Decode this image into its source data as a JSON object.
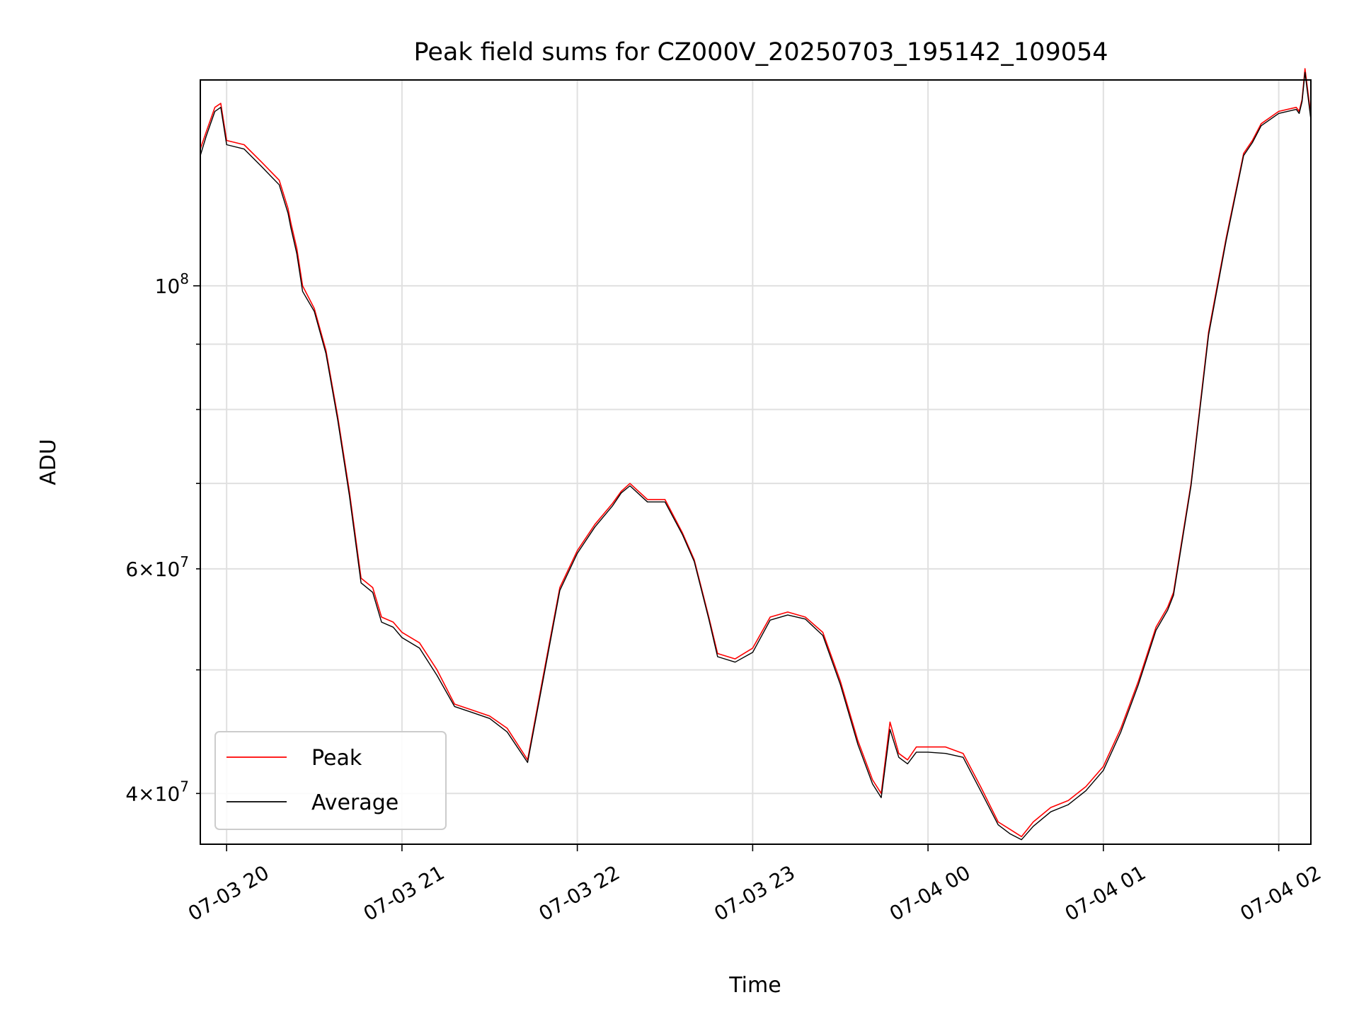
{
  "chart_data": {
    "type": "line",
    "title": "Peak field sums for CZ000V_20250703_195142_109054",
    "xlabel": "Time",
    "ylabel": "ADU",
    "y_scale": "log",
    "ylim": [
      36500000,
      145000000
    ],
    "xlim": [
      "2025-07-03 19:51",
      "2025-07-04 02:11"
    ],
    "grid": true,
    "legend_position": "lower-left",
    "x_ticks": [
      {
        "t": "2025-07-03 20:00",
        "label": "07-03 20"
      },
      {
        "t": "2025-07-03 21:00",
        "label": "07-03 21"
      },
      {
        "t": "2025-07-03 22:00",
        "label": "07-03 22"
      },
      {
        "t": "2025-07-03 23:00",
        "label": "07-03 23"
      },
      {
        "t": "2025-07-04 00:00",
        "label": "07-04 00"
      },
      {
        "t": "2025-07-04 01:00",
        "label": "07-04 01"
      },
      {
        "t": "2025-07-04 02:00",
        "label": "07-04 02"
      }
    ],
    "y_major_ticks": [
      {
        "v": 100000000,
        "label_base": "10",
        "label_exp": "8"
      }
    ],
    "y_minor_ticks": [
      {
        "v": 40000000,
        "label_base": "4×10",
        "label_exp": "7"
      },
      {
        "v": 50000000
      },
      {
        "v": 60000000,
        "label_base": "6×10",
        "label_exp": "7"
      },
      {
        "v": 70000000
      },
      {
        "v": 80000000
      },
      {
        "v": 90000000
      }
    ],
    "series": [
      {
        "name": "Peak",
        "color": "#ff0000",
        "x": [
          "2025-07-03 19:51",
          "2025-07-03 19:53",
          "2025-07-03 19:56",
          "2025-07-03 19:58",
          "2025-07-03 20:00",
          "2025-07-03 20:00",
          "2025-07-03 20:06",
          "2025-07-03 20:12",
          "2025-07-03 20:18",
          "2025-07-03 20:21",
          "2025-07-03 20:22",
          "2025-07-03 20:24",
          "2025-07-03 20:26",
          "2025-07-03 20:30",
          "2025-07-03 20:34",
          "2025-07-03 20:38",
          "2025-07-03 20:42",
          "2025-07-03 20:46",
          "2025-07-03 20:50",
          "2025-07-03 20:53",
          "2025-07-03 20:57",
          "2025-07-03 21:00",
          "2025-07-03 21:06",
          "2025-07-03 21:12",
          "2025-07-03 21:18",
          "2025-07-03 21:24",
          "2025-07-03 21:30",
          "2025-07-03 21:36",
          "2025-07-03 21:43",
          "2025-07-03 21:48",
          "2025-07-03 21:54",
          "2025-07-03 22:00",
          "2025-07-03 22:06",
          "2025-07-03 22:12",
          "2025-07-03 22:15",
          "2025-07-03 22:18",
          "2025-07-03 22:24",
          "2025-07-03 22:30",
          "2025-07-03 22:36",
          "2025-07-03 22:40",
          "2025-07-03 22:45",
          "2025-07-03 22:48",
          "2025-07-03 22:54",
          "2025-07-03 23:00",
          "2025-07-03 23:06",
          "2025-07-03 23:12",
          "2025-07-03 23:18",
          "2025-07-03 23:24",
          "2025-07-03 23:30",
          "2025-07-03 23:36",
          "2025-07-03 23:41",
          "2025-07-03 23:44",
          "2025-07-03 23:47",
          "2025-07-03 23:50",
          "2025-07-03 23:53",
          "2025-07-03 23:56",
          "2025-07-04 00:00",
          "2025-07-04 00:06",
          "2025-07-04 00:12",
          "2025-07-04 00:18",
          "2025-07-04 00:24",
          "2025-07-04 00:28",
          "2025-07-04 00:32",
          "2025-07-04 00:36",
          "2025-07-04 00:42",
          "2025-07-04 00:48",
          "2025-07-04 00:54",
          "2025-07-04 01:00",
          "2025-07-04 01:06",
          "2025-07-04 01:12",
          "2025-07-04 01:18",
          "2025-07-04 01:22",
          "2025-07-04 01:24",
          "2025-07-04 01:30",
          "2025-07-04 01:36",
          "2025-07-04 01:42",
          "2025-07-04 01:48",
          "2025-07-04 01:51",
          "2025-07-04 01:54",
          "2025-07-04 02:00",
          "2025-07-04 02:06",
          "2025-07-04 02:07",
          "2025-07-04 02:08",
          "2025-07-04 02:09",
          "2025-07-04 02:11"
        ],
        "y": [
          128000000,
          132000000,
          138000000,
          139000000,
          130000000,
          130000000,
          129000000,
          125000000,
          121000000,
          115000000,
          112000000,
          107000000,
          100000000,
          96000000,
          89000000,
          79000000,
          69000000,
          59000000,
          58000000,
          55000000,
          54500000,
          53500000,
          52500000,
          50000000,
          47000000,
          46500000,
          46000000,
          45000000,
          42500000,
          49000000,
          58000000,
          62000000,
          65000000,
          67500000,
          69000000,
          70000000,
          68000000,
          68000000,
          64000000,
          61000000,
          55000000,
          51500000,
          51000000,
          52000000,
          55000000,
          55500000,
          55000000,
          53500000,
          49000000,
          44000000,
          41000000,
          40000000,
          45500000,
          43000000,
          42500000,
          43500000,
          43500000,
          43500000,
          43000000,
          40500000,
          38000000,
          37500000,
          37000000,
          38000000,
          39000000,
          39500000,
          40500000,
          42000000,
          45000000,
          49000000,
          54000000,
          56000000,
          57500000,
          70000000,
          92000000,
          109000000,
          127000000,
          130000000,
          134000000,
          137000000,
          138000000,
          137000000,
          140000000,
          148000000,
          136000000
        ]
      },
      {
        "name": "Average",
        "color": "#000000",
        "x": [
          "2025-07-03 19:51",
          "2025-07-03 19:53",
          "2025-07-03 19:56",
          "2025-07-03 19:58",
          "2025-07-03 20:00",
          "2025-07-03 20:00",
          "2025-07-03 20:06",
          "2025-07-03 20:12",
          "2025-07-03 20:18",
          "2025-07-03 20:21",
          "2025-07-03 20:22",
          "2025-07-03 20:24",
          "2025-07-03 20:26",
          "2025-07-03 20:30",
          "2025-07-03 20:34",
          "2025-07-03 20:38",
          "2025-07-03 20:42",
          "2025-07-03 20:46",
          "2025-07-03 20:50",
          "2025-07-03 20:53",
          "2025-07-03 20:57",
          "2025-07-03 21:00",
          "2025-07-03 21:06",
          "2025-07-03 21:12",
          "2025-07-03 21:18",
          "2025-07-03 21:24",
          "2025-07-03 21:30",
          "2025-07-03 21:36",
          "2025-07-03 21:43",
          "2025-07-03 21:48",
          "2025-07-03 21:54",
          "2025-07-03 22:00",
          "2025-07-03 22:06",
          "2025-07-03 22:12",
          "2025-07-03 22:15",
          "2025-07-03 22:18",
          "2025-07-03 22:24",
          "2025-07-03 22:30",
          "2025-07-03 22:36",
          "2025-07-03 22:40",
          "2025-07-03 22:45",
          "2025-07-03 22:48",
          "2025-07-03 22:54",
          "2025-07-03 23:00",
          "2025-07-03 23:06",
          "2025-07-03 23:12",
          "2025-07-03 23:18",
          "2025-07-03 23:24",
          "2025-07-03 23:30",
          "2025-07-03 23:36",
          "2025-07-03 23:41",
          "2025-07-03 23:44",
          "2025-07-03 23:47",
          "2025-07-03 23:50",
          "2025-07-03 23:53",
          "2025-07-03 23:56",
          "2025-07-04 00:00",
          "2025-07-04 00:06",
          "2025-07-04 00:12",
          "2025-07-04 00:18",
          "2025-07-04 00:24",
          "2025-07-04 00:28",
          "2025-07-04 00:32",
          "2025-07-04 00:36",
          "2025-07-04 00:42",
          "2025-07-04 00:48",
          "2025-07-04 00:54",
          "2025-07-04 01:00",
          "2025-07-04 01:06",
          "2025-07-04 01:12",
          "2025-07-04 01:18",
          "2025-07-04 01:22",
          "2025-07-04 01:24",
          "2025-07-04 01:30",
          "2025-07-04 01:36",
          "2025-07-04 01:42",
          "2025-07-04 01:48",
          "2025-07-04 01:51",
          "2025-07-04 01:54",
          "2025-07-04 02:00",
          "2025-07-04 02:06",
          "2025-07-04 02:07",
          "2025-07-04 02:08",
          "2025-07-04 02:09",
          "2025-07-04 02:11"
        ],
        "y": [
          126500000,
          131000000,
          137000000,
          138000000,
          129000000,
          129000000,
          128000000,
          124000000,
          120000000,
          114000000,
          111000000,
          106000000,
          99000000,
          95500000,
          88500000,
          78500000,
          68500000,
          58500000,
          57500000,
          54500000,
          54000000,
          53000000,
          52000000,
          49500000,
          46800000,
          46300000,
          45800000,
          44700000,
          42300000,
          48700000,
          57700000,
          61700000,
          64700000,
          67200000,
          68800000,
          69700000,
          67700000,
          67700000,
          63800000,
          60800000,
          54800000,
          51200000,
          50700000,
          51600000,
          54700000,
          55200000,
          54800000,
          53200000,
          48700000,
          43700000,
          40700000,
          39700000,
          44900000,
          42700000,
          42200000,
          43100000,
          43100000,
          43000000,
          42700000,
          40200000,
          37800000,
          37200000,
          36800000,
          37700000,
          38700000,
          39200000,
          40200000,
          41700000,
          44700000,
          48700000,
          53700000,
          55700000,
          57200000,
          69700000,
          91500000,
          108500000,
          126500000,
          129500000,
          133500000,
          136500000,
          137500000,
          136500000,
          139500000,
          147000000,
          135000000
        ]
      }
    ]
  }
}
